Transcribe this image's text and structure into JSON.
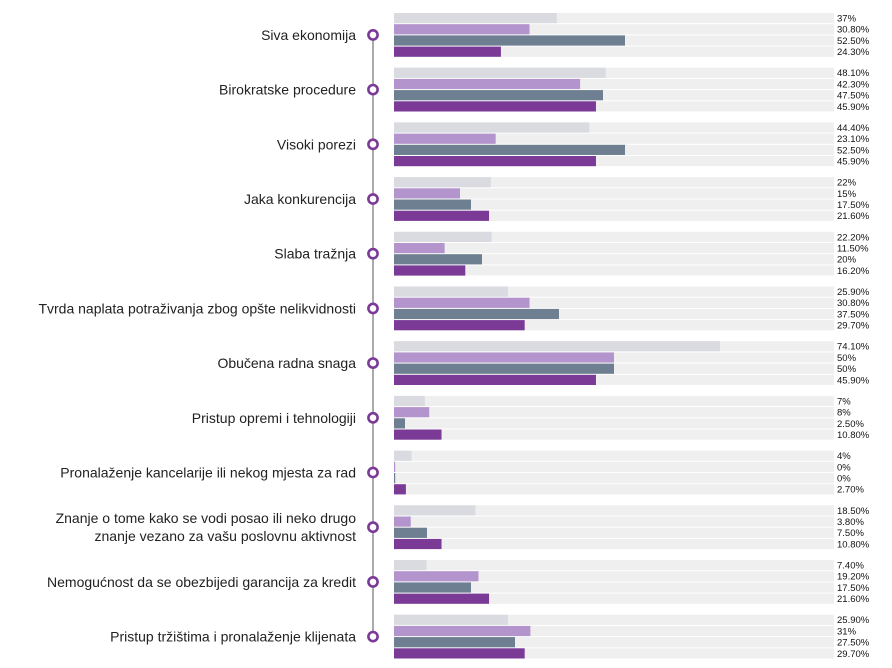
{
  "chart_data": {
    "type": "bar",
    "orientation": "horizontal",
    "categories": [
      "Siva ekonomija",
      "Birokratske procedure",
      "Visoki porezi",
      "Jaka konkurencija",
      "Slaba tražnja",
      "Tvrda naplata potraživanja zbog opšte nelikvidnosti",
      "Obučena radna snaga",
      "Pristup opremi i tehnologiji",
      "Pronalaženje kancelarije ili nekog mjesta za rad",
      "Znanje o tome kako se vodi posao ili neko drugo znanje vezano za vašu poslovnu aktivnost",
      "Nemogućnost da se obezbijedi garancija za kredit",
      "Pristup tržištima i pronalaženje klijenata"
    ],
    "category_lines": [
      [
        "Siva ekonomija"
      ],
      [
        "Birokratske procedure"
      ],
      [
        "Visoki porezi"
      ],
      [
        "Jaka konkurencija"
      ],
      [
        "Slaba tražnja"
      ],
      [
        "Tvrda naplata potraživanja zbog opšte nelikvidnosti"
      ],
      [
        "Obučena radna snaga"
      ],
      [
        "Pristup opremi i tehnologiji"
      ],
      [
        "Pronalaženje kancelarije ili nekog mjesta za rad"
      ],
      [
        "Znanje o tome kako se vodi posao ili neko drugo",
        "znanje vezano za vašu poslovnu aktivnost"
      ],
      [
        "Nemogućnost da se obezbijedi garancija za kredit"
      ],
      [
        "Pristup tržištima i pronalaženje klijenata"
      ]
    ],
    "series": [
      {
        "color": "#d9dbe0",
        "values": [
          37,
          48.1,
          44.4,
          22,
          22.2,
          25.9,
          74.1,
          7,
          4,
          18.5,
          7.4,
          25.9
        ],
        "labels": [
          "37%",
          "48.10%",
          "44.40%",
          "22%",
          "22.20%",
          "25.90%",
          "74.10%",
          "7%",
          "4%",
          "18.50%",
          "7.40%",
          "25.90%"
        ]
      },
      {
        "color": "#b394cc",
        "values": [
          30.8,
          42.3,
          23.1,
          15,
          11.5,
          30.8,
          50,
          8,
          0,
          3.8,
          19.2,
          31
        ],
        "labels": [
          "30.80%",
          "42.30%",
          "23.10%",
          "15%",
          "11.50%",
          "30.80%",
          "50%",
          "8%",
          "0%",
          "3.80%",
          "19.20%",
          "31%"
        ]
      },
      {
        "color": "#6e7f91",
        "values": [
          52.5,
          47.5,
          52.5,
          17.5,
          20,
          37.5,
          50,
          2.5,
          0,
          7.5,
          17.5,
          27.5
        ],
        "labels": [
          "52.50%",
          "47.50%",
          "52.50%",
          "17.50%",
          "20%",
          "37.50%",
          "50%",
          "2.50%",
          "0%",
          "7.50%",
          "17.50%",
          "27.50%"
        ]
      },
      {
        "color": "#7a3a96",
        "values": [
          24.3,
          45.9,
          45.9,
          21.6,
          16.2,
          29.7,
          45.9,
          10.8,
          2.7,
          10.8,
          21.6,
          29.7
        ],
        "labels": [
          "24.30%",
          "45.90%",
          "45.90%",
          "21.60%",
          "16.20%",
          "29.70%",
          "45.90%",
          "10.80%",
          "2.70%",
          "10.80%",
          "21.60%",
          "29.70%"
        ]
      }
    ],
    "xlim": [
      0,
      100
    ],
    "track_color": "#efefef",
    "marker_color": "#7a3a96",
    "line_color": "#555555",
    "grid": false,
    "legend": "none"
  }
}
